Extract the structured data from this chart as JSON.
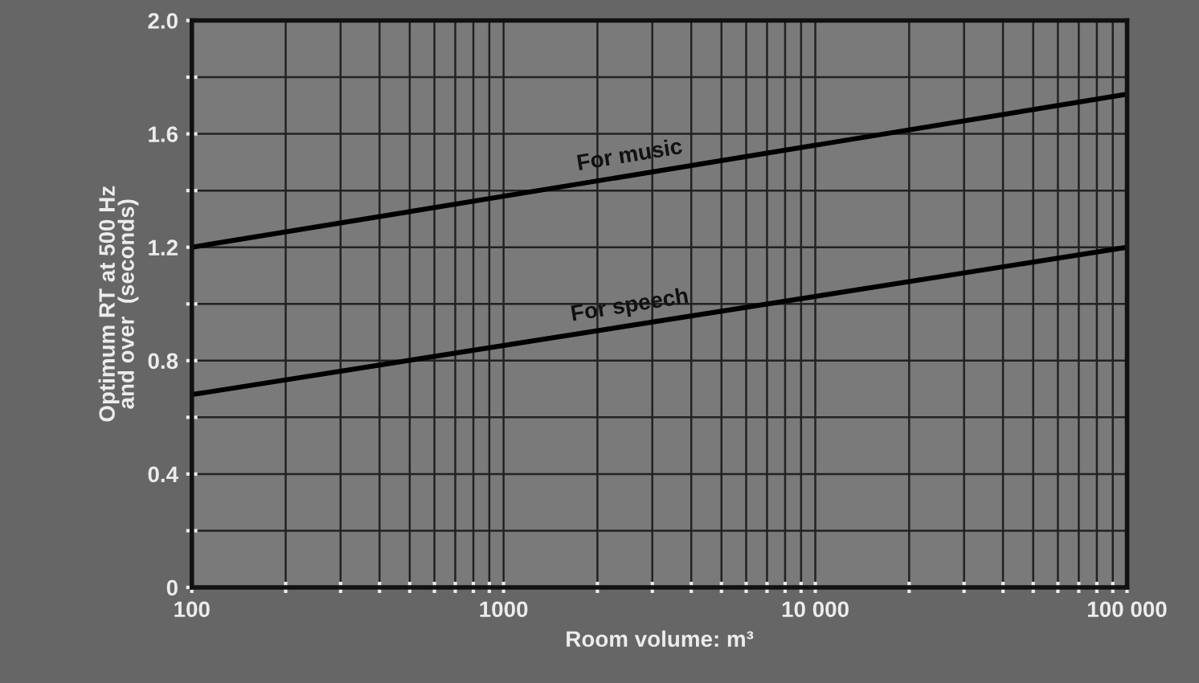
{
  "chart_data": {
    "type": "line",
    "xlabel": "Room volume: m³",
    "ylabel": "Optimum RT at 500 Hz\nand over  (seconds)",
    "x": [
      100,
      100000
    ],
    "series": [
      {
        "name": "For music",
        "color": "#000000",
        "values": [
          1.2,
          1.74
        ]
      },
      {
        "name": "For speech",
        "color": "#000000",
        "values": [
          0.68,
          1.2
        ]
      }
    ],
    "log": "x",
    "xlim": [
      100,
      100000
    ],
    "ylim": [
      0,
      2.0
    ],
    "xticks": [
      {
        "value": 100,
        "label": "100"
      },
      {
        "value": 200,
        "label": null
      },
      {
        "value": 300,
        "label": null
      },
      {
        "value": 400,
        "label": null
      },
      {
        "value": 500,
        "label": null
      },
      {
        "value": 600,
        "label": null
      },
      {
        "value": 700,
        "label": null
      },
      {
        "value": 800,
        "label": null
      },
      {
        "value": 900,
        "label": null
      },
      {
        "value": 1000,
        "label": "1000"
      },
      {
        "value": 2000,
        "label": null
      },
      {
        "value": 3000,
        "label": null
      },
      {
        "value": 4000,
        "label": null
      },
      {
        "value": 5000,
        "label": null
      },
      {
        "value": 6000,
        "label": null
      },
      {
        "value": 7000,
        "label": null
      },
      {
        "value": 8000,
        "label": null
      },
      {
        "value": 9000,
        "label": null
      },
      {
        "value": 10000,
        "label": "10 000"
      },
      {
        "value": 20000,
        "label": null
      },
      {
        "value": 30000,
        "label": null
      },
      {
        "value": 40000,
        "label": null
      },
      {
        "value": 50000,
        "label": null
      },
      {
        "value": 60000,
        "label": null
      },
      {
        "value": 70000,
        "label": null
      },
      {
        "value": 80000,
        "label": null
      },
      {
        "value": 90000,
        "label": null
      },
      {
        "value": 100000,
        "label": "100 000"
      }
    ],
    "yticks": [
      0,
      {
        "value": 0.2,
        "label": null
      },
      0.4,
      {
        "value": 0.6,
        "label": null
      },
      0.8,
      {
        "value": 1.0,
        "label": null
      },
      1.2,
      {
        "value": 1.4,
        "label": null
      },
      1.6,
      {
        "value": 1.8,
        "label": null
      },
      {
        "value": 2.0,
        "label": "2.0"
      }
    ],
    "grid": true,
    "legend": false,
    "marker": "none",
    "line_style": "solid"
  }
}
